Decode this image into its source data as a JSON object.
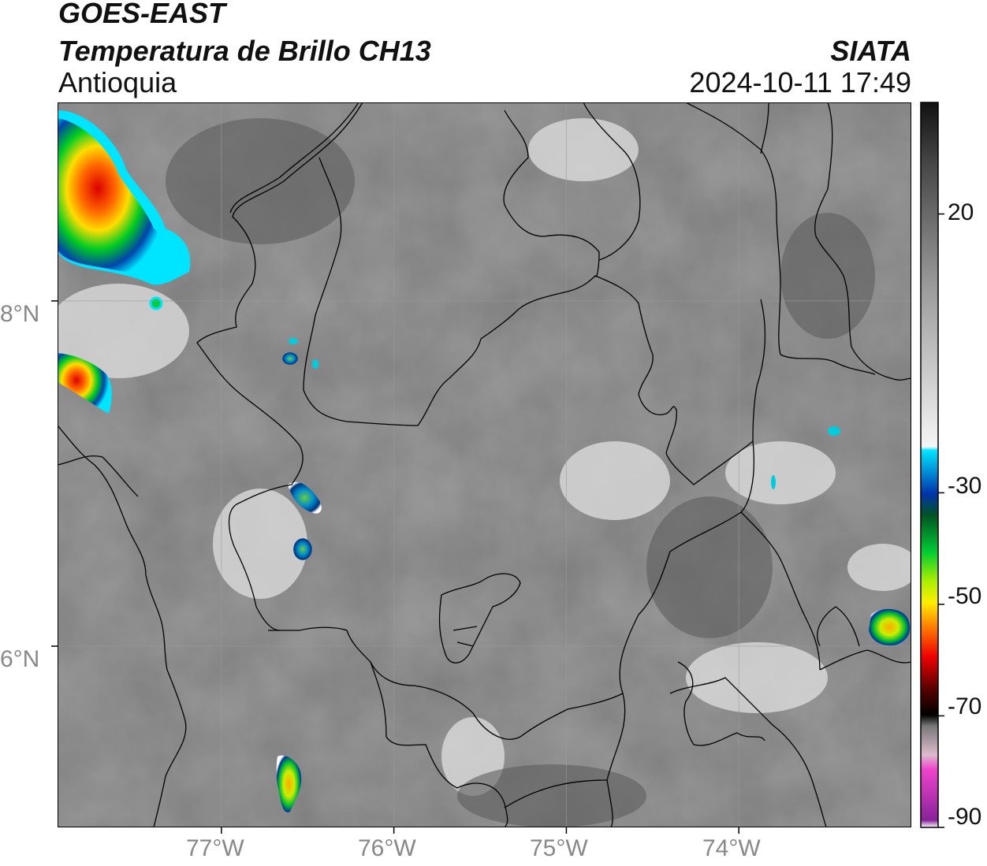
{
  "header": {
    "satellite": "GOES-EAST",
    "product": "Temperatura de Brillo CH13",
    "region": "Antioquia",
    "organization": "SIATA",
    "datetime": "2024-10-11 17:49"
  },
  "map": {
    "lat_labels": [
      "8°N",
      "6°N"
    ],
    "lon_labels": [
      "77°W",
      "76°W",
      "75°W",
      "74°W"
    ],
    "lat_values": [
      8,
      6
    ],
    "lon_values": [
      -77,
      -76,
      -75,
      -74
    ],
    "extent": {
      "lon_min": -77.95,
      "lon_max": -73.0,
      "lat_min": 4.95,
      "lat_max": 9.15
    }
  },
  "colorbar": {
    "ticks": [
      "20",
      "-30",
      "-50",
      "-70",
      "-90"
    ],
    "tick_values": [
      20,
      -30,
      -50,
      -70,
      -90
    ],
    "range": [
      -90,
      40
    ],
    "colors": {
      "warm_gray_top": "#111111",
      "white": "#f5f5f5",
      "cyan": "#00e5ff",
      "blue": "#0033aa",
      "green": "#00cc33",
      "yellow": "#ffee00",
      "orange": "#ff8800",
      "red": "#ee0000",
      "dark_red": "#550000",
      "black": "#000000",
      "pink": "#ee44cc",
      "purple": "#882299"
    }
  }
}
